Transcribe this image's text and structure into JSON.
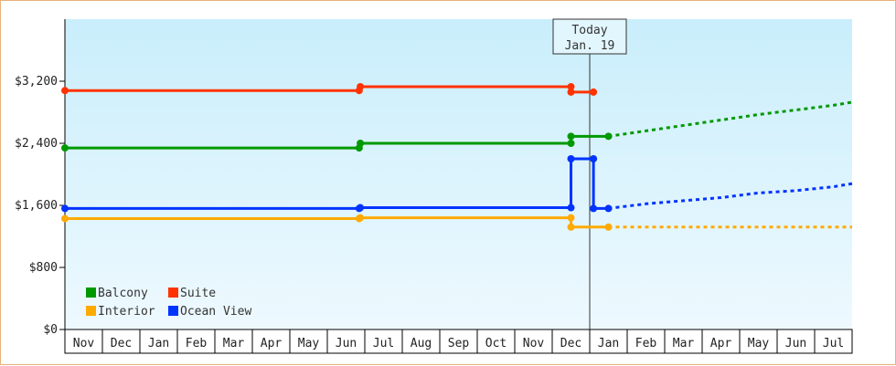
{
  "chart_data": {
    "type": "line",
    "ylim": [
      0,
      4000
    ],
    "y_ticks": [
      {
        "value": 0,
        "label": "$0"
      },
      {
        "value": 800,
        "label": "$800"
      },
      {
        "value": 1600,
        "label": "$1,600"
      },
      {
        "value": 2400,
        "label": "$2,400"
      },
      {
        "value": 3200,
        "label": "$3,200"
      }
    ],
    "x_months": [
      "Nov",
      "Dec",
      "Jan",
      "Feb",
      "Mar",
      "Apr",
      "May",
      "Jun",
      "Jul",
      "Aug",
      "Sep",
      "Oct",
      "Nov",
      "Dec",
      "Jan",
      "Feb",
      "Mar",
      "Apr",
      "May",
      "Jun",
      "Jul"
    ],
    "today": {
      "x": 14.0,
      "line1": "Today",
      "line2": "Jan. 19"
    },
    "legend_position": "bottom-left",
    "series": [
      {
        "name": "Suite",
        "color": "#ff3300",
        "points": [
          [
            0.0,
            3080
          ],
          [
            7.85,
            3080
          ],
          [
            7.88,
            3130
          ],
          [
            13.5,
            3130
          ],
          [
            13.5,
            3060
          ],
          [
            14.1,
            3060
          ]
        ],
        "markers": [
          [
            0.0,
            3080
          ],
          [
            7.85,
            3080
          ],
          [
            7.88,
            3130
          ],
          [
            13.5,
            3130
          ],
          [
            13.5,
            3060
          ],
          [
            14.1,
            3060
          ]
        ],
        "forecast": []
      },
      {
        "name": "Balcony",
        "color": "#009900",
        "points": [
          [
            0.0,
            2340
          ],
          [
            7.85,
            2340
          ],
          [
            7.88,
            2400
          ],
          [
            13.5,
            2400
          ],
          [
            13.5,
            2490
          ],
          [
            14.5,
            2490
          ]
        ],
        "markers": [
          [
            0.0,
            2340
          ],
          [
            7.85,
            2340
          ],
          [
            7.88,
            2400
          ],
          [
            13.5,
            2400
          ],
          [
            13.5,
            2490
          ],
          [
            14.5,
            2490
          ]
        ],
        "forecast": [
          [
            14.5,
            2490
          ],
          [
            15.5,
            2560
          ],
          [
            16.5,
            2630
          ],
          [
            17.5,
            2700
          ],
          [
            18.5,
            2770
          ],
          [
            19.5,
            2830
          ],
          [
            20.5,
            2890
          ],
          [
            21.0,
            2930
          ]
        ]
      },
      {
        "name": "Ocean View",
        "color": "#0033ff",
        "points": [
          [
            0.0,
            1560
          ],
          [
            7.85,
            1560
          ],
          [
            7.88,
            1570
          ],
          [
            13.5,
            1570
          ],
          [
            13.5,
            2200
          ],
          [
            14.1,
            2200
          ],
          [
            14.1,
            1560
          ],
          [
            14.5,
            1560
          ]
        ],
        "markers": [
          [
            0.0,
            1560
          ],
          [
            7.85,
            1560
          ],
          [
            7.88,
            1570
          ],
          [
            13.5,
            1570
          ],
          [
            13.5,
            2200
          ],
          [
            14.1,
            2200
          ],
          [
            14.1,
            1560
          ],
          [
            14.5,
            1560
          ]
        ],
        "forecast": [
          [
            14.5,
            1560
          ],
          [
            15.5,
            1620
          ],
          [
            16.5,
            1660
          ],
          [
            17.5,
            1700
          ],
          [
            18.5,
            1760
          ],
          [
            19.5,
            1790
          ],
          [
            20.5,
            1840
          ],
          [
            21.0,
            1880
          ]
        ]
      },
      {
        "name": "Interior",
        "color": "#ffaa00",
        "points": [
          [
            0.0,
            1430
          ],
          [
            7.85,
            1430
          ],
          [
            7.88,
            1440
          ],
          [
            13.5,
            1440
          ],
          [
            13.5,
            1320
          ],
          [
            14.5,
            1320
          ]
        ],
        "markers": [
          [
            0.0,
            1430
          ],
          [
            7.85,
            1430
          ],
          [
            7.88,
            1440
          ],
          [
            13.5,
            1440
          ],
          [
            13.5,
            1320
          ],
          [
            14.5,
            1320
          ]
        ],
        "forecast": [
          [
            14.5,
            1320
          ],
          [
            21.0,
            1320
          ]
        ]
      }
    ],
    "legend": [
      {
        "name": "Balcony",
        "color": "#009900"
      },
      {
        "name": "Suite",
        "color": "#ff3300"
      },
      {
        "name": "Interior",
        "color": "#ffaa00"
      },
      {
        "name": "Ocean View",
        "color": "#0033ff"
      }
    ]
  }
}
